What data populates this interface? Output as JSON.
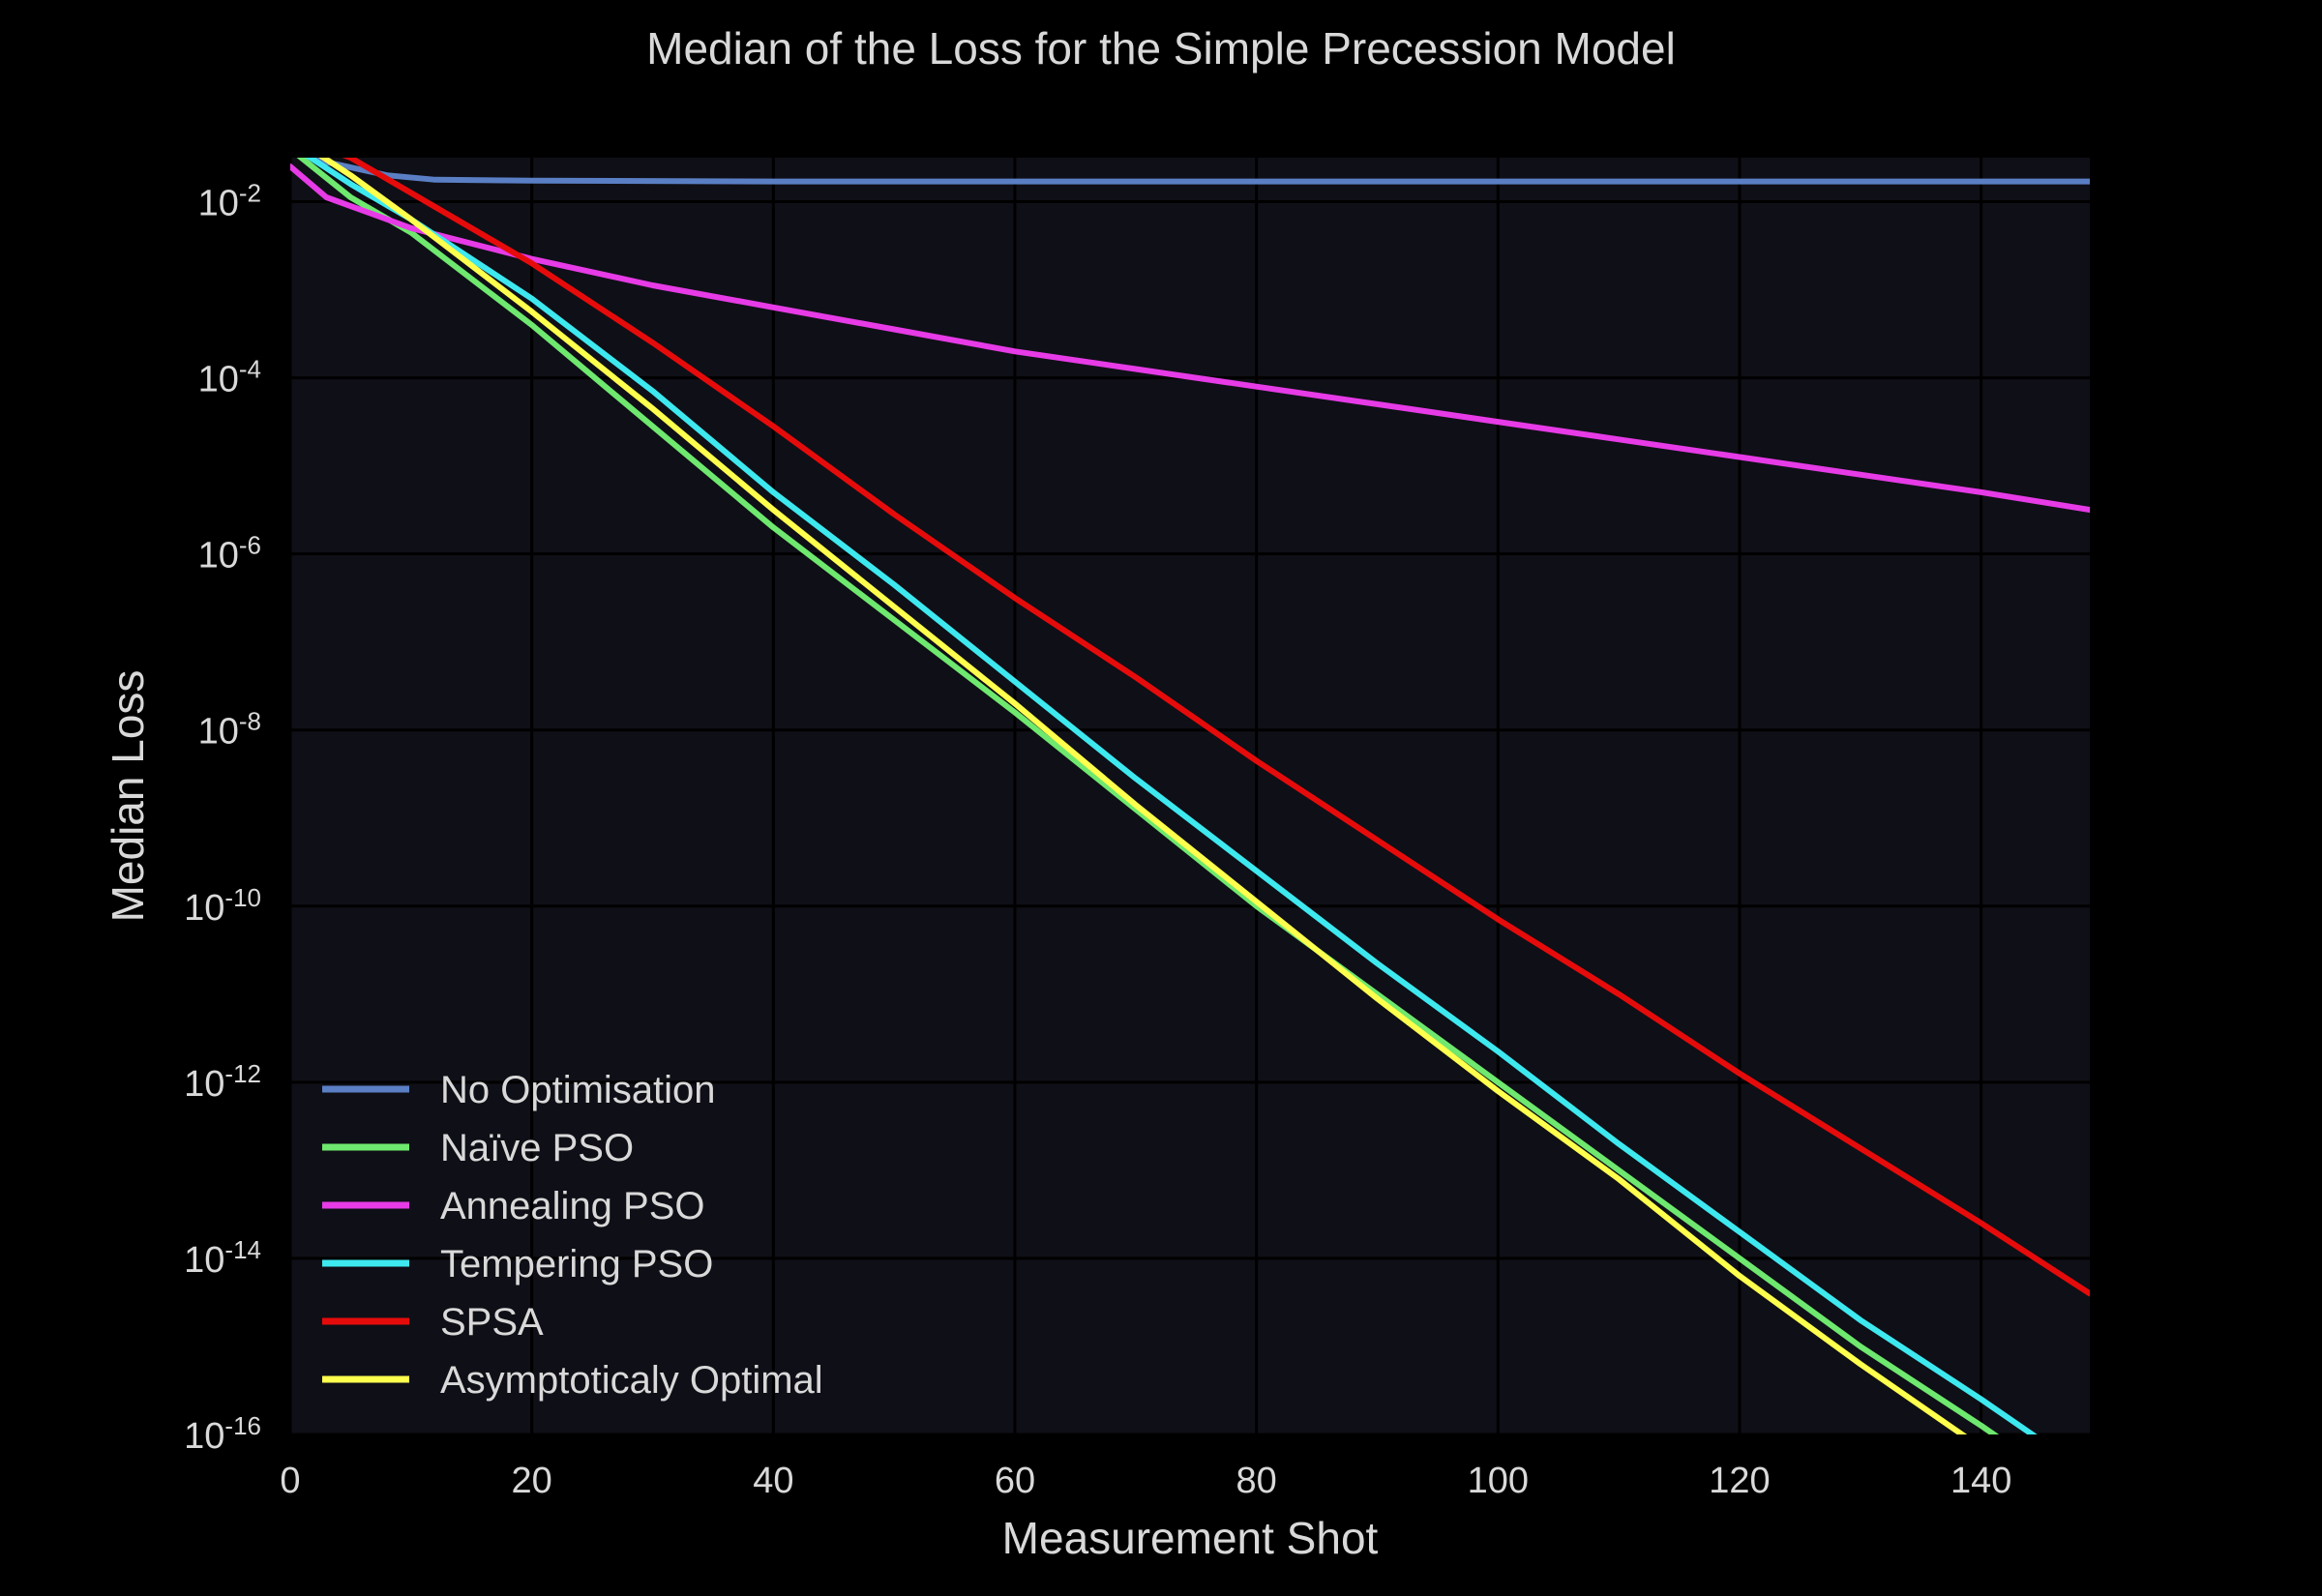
{
  "chart_data": {
    "type": "line",
    "title": "Median of the Loss for the Simple Precession Model",
    "xlabel": "Measurement Shot",
    "ylabel": "Median Loss",
    "xlim": [
      0,
      149
    ],
    "ylim_log10": [
      -16,
      -1.5
    ],
    "y_scale": "log",
    "x_ticks": [
      0,
      20,
      40,
      60,
      80,
      100,
      120,
      140
    ],
    "y_ticks": [
      {
        "value": -2,
        "base": "10",
        "exponent": "-2"
      },
      {
        "value": -4,
        "base": "10",
        "exponent": "-4"
      },
      {
        "value": -6,
        "base": "10",
        "exponent": "-6"
      },
      {
        "value": -8,
        "base": "10",
        "exponent": "-8"
      },
      {
        "value": -10,
        "base": "10",
        "exponent": "-10"
      },
      {
        "value": -12,
        "base": "10",
        "exponent": "-12"
      },
      {
        "value": -14,
        "base": "10",
        "exponent": "-14"
      },
      {
        "value": -16,
        "base": "10",
        "exponent": "-16"
      }
    ],
    "grid": true,
    "legend_position": "bottom-left",
    "series": [
      {
        "name": "No Optimisation",
        "color": "#5a7fc4",
        "points": [
          [
            0,
            -1.3
          ],
          [
            3,
            -1.55
          ],
          [
            8,
            -1.7
          ],
          [
            12,
            -1.75
          ],
          [
            20,
            -1.76
          ],
          [
            40,
            -1.77
          ],
          [
            149,
            -1.77
          ]
        ]
      },
      {
        "name": "Naïve PSO",
        "color": "#6ee86e",
        "points": [
          [
            0,
            -1.4
          ],
          [
            5,
            -1.95
          ],
          [
            10,
            -2.35
          ],
          [
            20,
            -3.4
          ],
          [
            30,
            -4.55
          ],
          [
            40,
            -5.7
          ],
          [
            50,
            -6.75
          ],
          [
            60,
            -7.8
          ],
          [
            70,
            -8.9
          ],
          [
            80,
            -10.0
          ],
          [
            90,
            -11.0
          ],
          [
            100,
            -12.0
          ],
          [
            110,
            -13.0
          ],
          [
            120,
            -14.0
          ],
          [
            130,
            -15.0
          ],
          [
            140,
            -15.9
          ],
          [
            149,
            -16.75
          ]
        ]
      },
      {
        "name": "Annealing PSO",
        "color": "#e63be6",
        "points": [
          [
            0,
            -1.6
          ],
          [
            3,
            -1.95
          ],
          [
            10,
            -2.3
          ],
          [
            20,
            -2.65
          ],
          [
            30,
            -2.95
          ],
          [
            40,
            -3.2
          ],
          [
            50,
            -3.45
          ],
          [
            60,
            -3.7
          ],
          [
            70,
            -3.9
          ],
          [
            80,
            -4.1
          ],
          [
            90,
            -4.3
          ],
          [
            100,
            -4.5
          ],
          [
            110,
            -4.7
          ],
          [
            120,
            -4.9
          ],
          [
            130,
            -5.1
          ],
          [
            140,
            -5.3
          ],
          [
            149,
            -5.5
          ]
        ]
      },
      {
        "name": "Tempering PSO",
        "color": "#3ee8ef",
        "points": [
          [
            0,
            -1.35
          ],
          [
            5,
            -1.8
          ],
          [
            10,
            -2.2
          ],
          [
            20,
            -3.1
          ],
          [
            30,
            -4.15
          ],
          [
            40,
            -5.3
          ],
          [
            50,
            -6.35
          ],
          [
            60,
            -7.45
          ],
          [
            70,
            -8.55
          ],
          [
            80,
            -9.6
          ],
          [
            90,
            -10.65
          ],
          [
            100,
            -11.65
          ],
          [
            110,
            -12.7
          ],
          [
            120,
            -13.7
          ],
          [
            130,
            -14.7
          ],
          [
            140,
            -15.6
          ],
          [
            149,
            -16.45
          ]
        ]
      },
      {
        "name": "SPSA",
        "color": "#e60b0b",
        "points": [
          [
            0,
            -1.25
          ],
          [
            5,
            -1.5
          ],
          [
            10,
            -1.9
          ],
          [
            20,
            -2.7
          ],
          [
            30,
            -3.6
          ],
          [
            40,
            -4.55
          ],
          [
            50,
            -5.55
          ],
          [
            60,
            -6.5
          ],
          [
            70,
            -7.4
          ],
          [
            80,
            -8.35
          ],
          [
            90,
            -9.25
          ],
          [
            100,
            -10.15
          ],
          [
            110,
            -11.0
          ],
          [
            120,
            -11.9
          ],
          [
            130,
            -12.75
          ],
          [
            140,
            -13.6
          ],
          [
            149,
            -14.4
          ]
        ]
      },
      {
        "name": "Asymptoticaly Optimal",
        "color": "#ffff4d",
        "points": [
          [
            0,
            -1.25
          ],
          [
            5,
            -1.7
          ],
          [
            10,
            -2.2
          ],
          [
            20,
            -3.25
          ],
          [
            30,
            -4.35
          ],
          [
            40,
            -5.5
          ],
          [
            50,
            -6.6
          ],
          [
            60,
            -7.7
          ],
          [
            70,
            -8.85
          ],
          [
            80,
            -9.95
          ],
          [
            90,
            -11.05
          ],
          [
            100,
            -12.1
          ],
          [
            110,
            -13.1
          ],
          [
            120,
            -14.2
          ],
          [
            130,
            -15.2
          ],
          [
            140,
            -16.15
          ],
          [
            149,
            -17.0
          ]
        ]
      }
    ]
  }
}
